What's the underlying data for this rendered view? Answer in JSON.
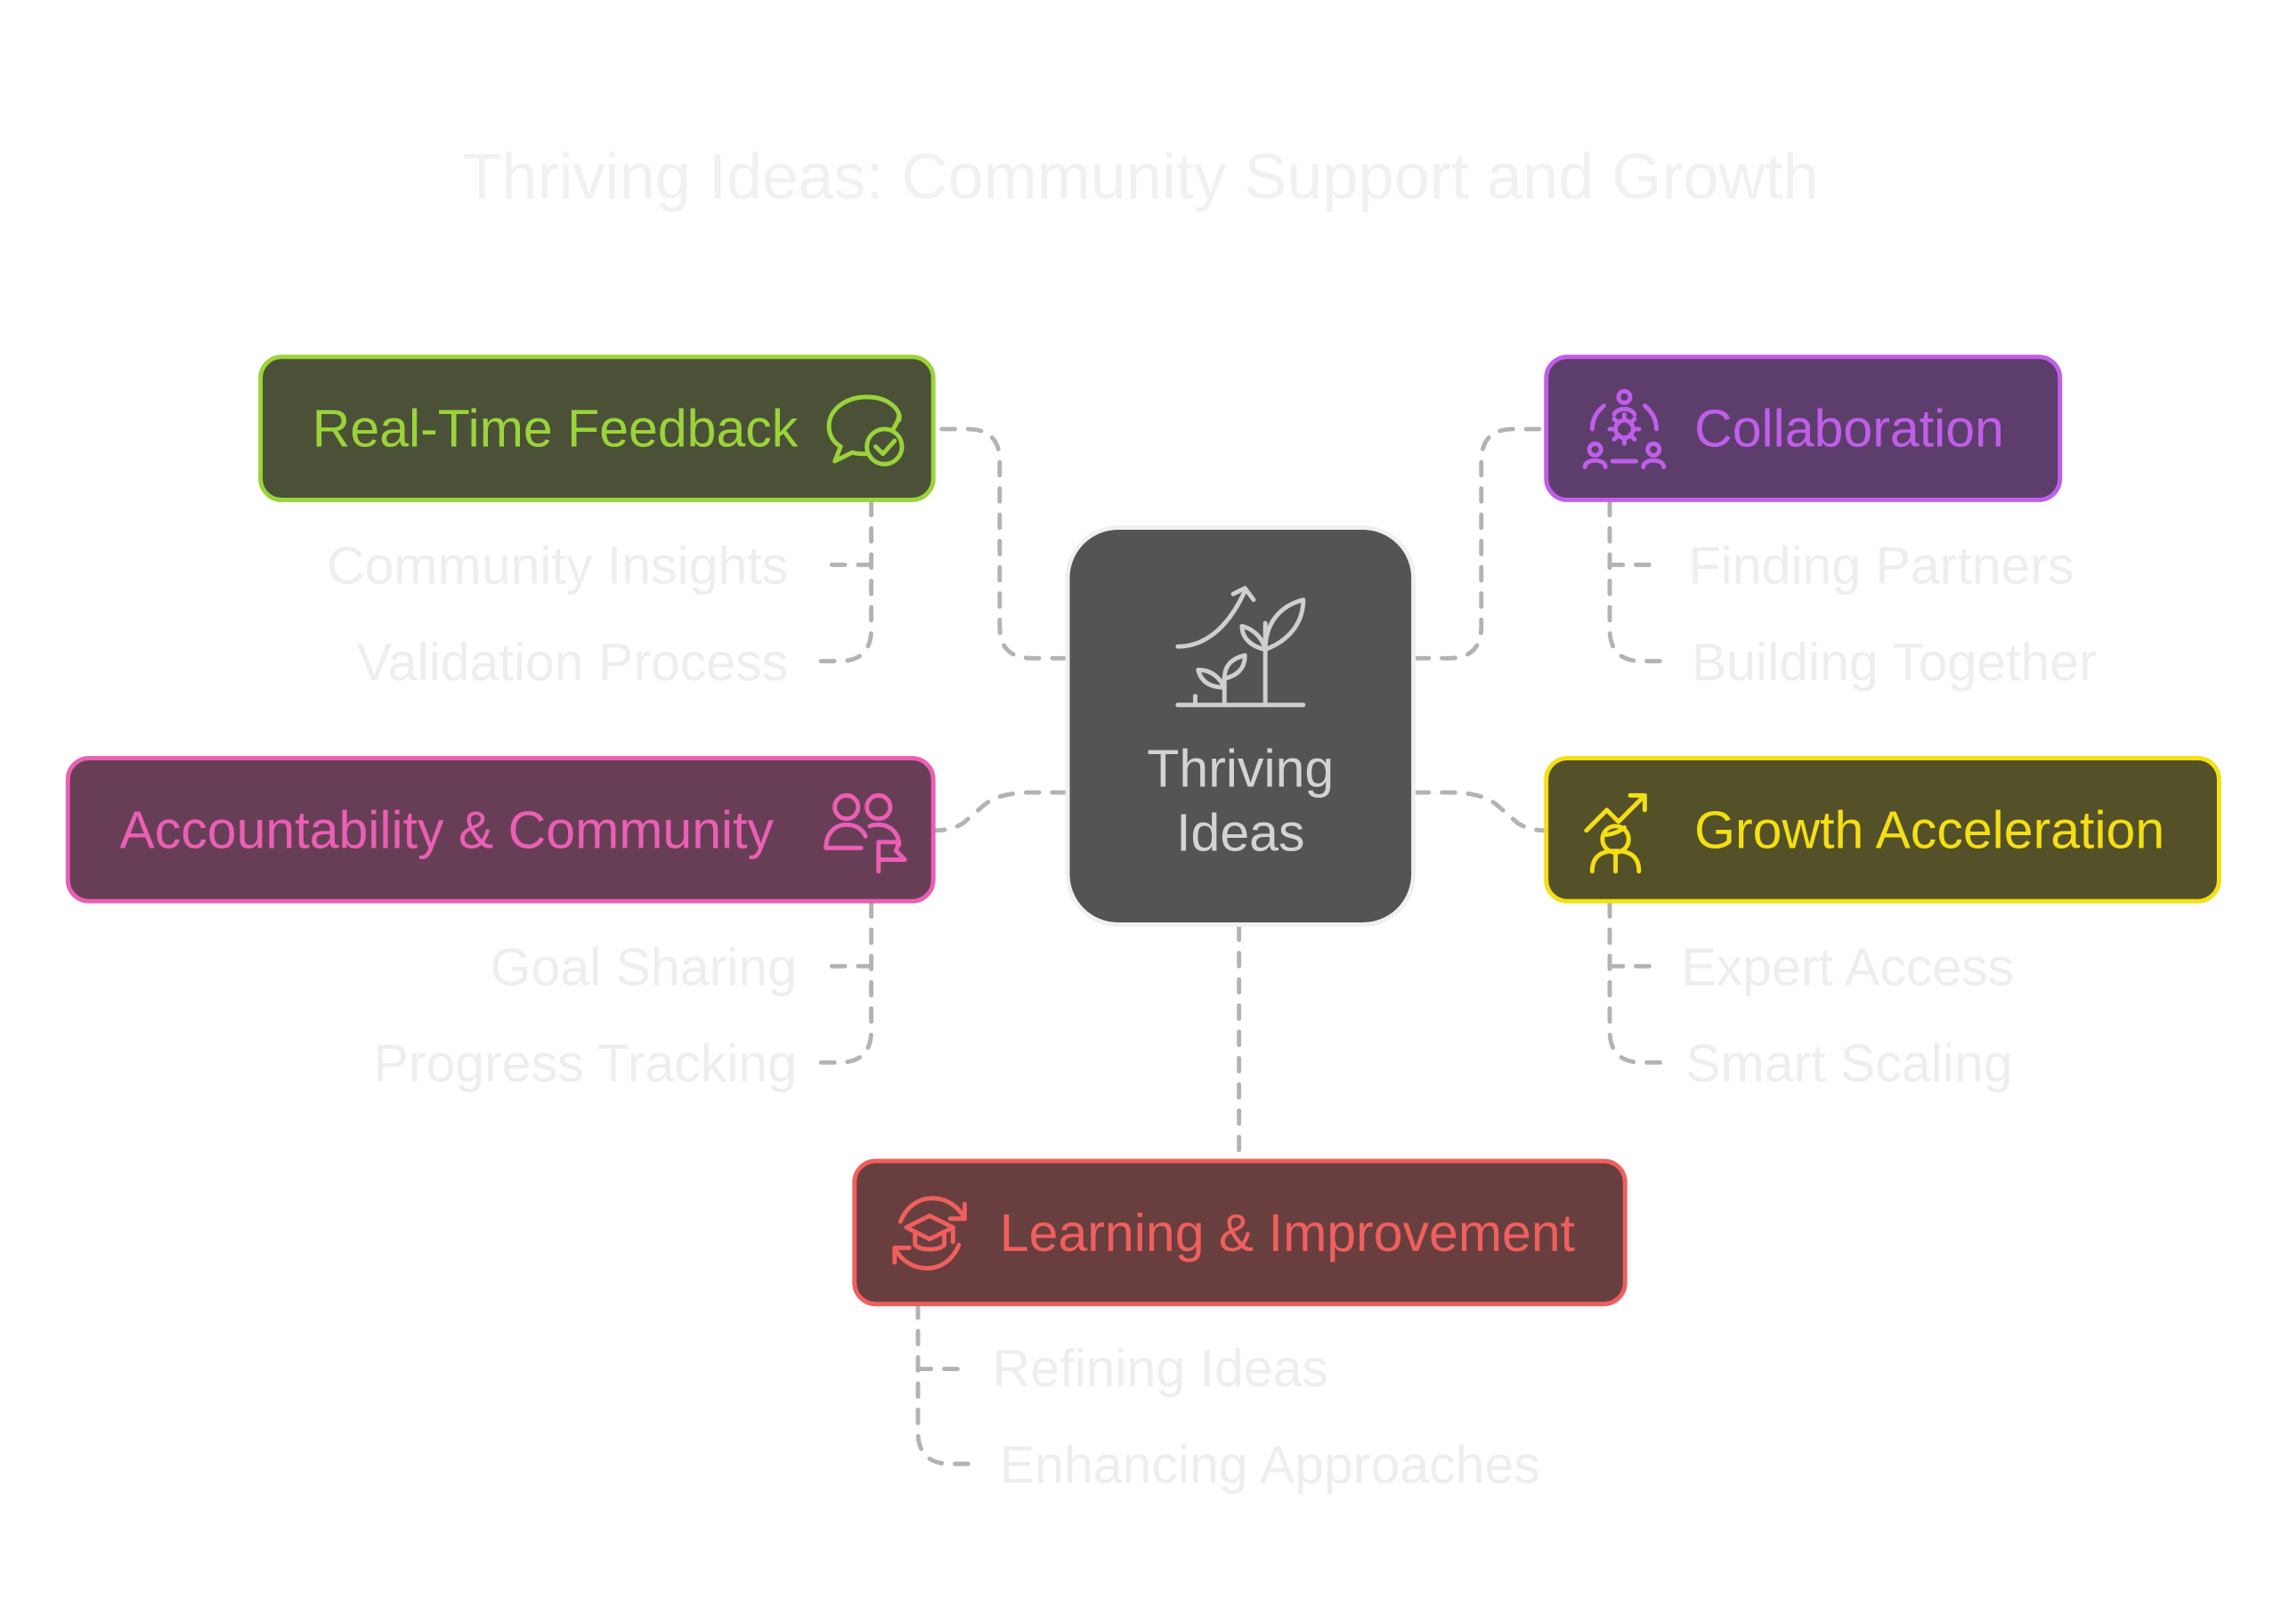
{
  "diagram": {
    "title": "Thriving Ideas: Community Support and Growth",
    "center": {
      "label_line1": "Thriving",
      "label_line2": "Ideas",
      "icon": "growing-plant-icon"
    },
    "branches": [
      {
        "id": "feedback",
        "label": "Real-Time Feedback",
        "icon": "chat-check-icon",
        "color": "#9ad43a",
        "fill": "#4b5137",
        "items": [
          "Community Insights",
          "Validation Process"
        ]
      },
      {
        "id": "accountability",
        "label": "Accountability & Community",
        "icon": "people-flag-icon",
        "color": "#ea5fb3",
        "fill": "#683e57",
        "items": [
          "Goal Sharing",
          "Progress Tracking"
        ]
      },
      {
        "id": "collaboration",
        "label": "Collaboration",
        "icon": "team-gear-icon",
        "color": "#c05ee9",
        "fill": "#5d3d6c",
        "items": [
          "Finding Partners",
          "Building Together"
        ]
      },
      {
        "id": "growth",
        "label": "Growth Acceleration",
        "icon": "person-growth-arrow-icon",
        "color": "#f4df14",
        "fill": "#545129",
        "items": [
          "Expert Access",
          "Smart Scaling"
        ]
      },
      {
        "id": "learning",
        "label": "Learning & Improvement",
        "icon": "graduation-cycle-icon",
        "color": "#ef5f5d",
        "fill": "#693e3f",
        "items": [
          "Refining Ideas",
          "Enhancing Approaches"
        ]
      }
    ]
  }
}
